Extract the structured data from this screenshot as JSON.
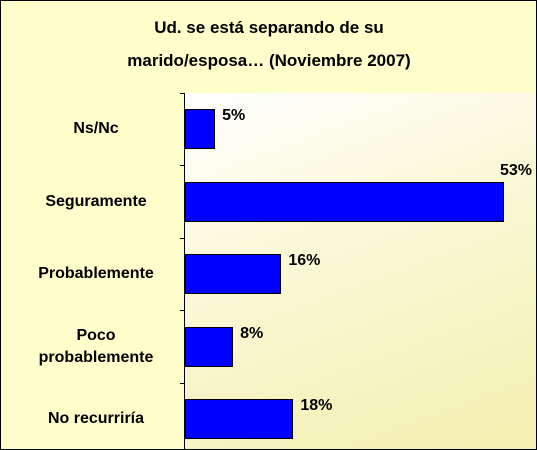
{
  "chart_data": {
    "type": "bar",
    "orientation": "horizontal",
    "title": "Ud. se está separando de su marido/esposa… (Noviembre 2007)",
    "categories": [
      "Ns/Nc",
      "Seguramente",
      "Probablemente",
      "Poco probablemente",
      "No recurriría"
    ],
    "values": [
      5,
      53,
      16,
      8,
      18
    ],
    "value_labels": [
      "5%",
      "53%",
      "16%",
      "8%",
      "18%"
    ],
    "color": "#0000ff"
  }
}
